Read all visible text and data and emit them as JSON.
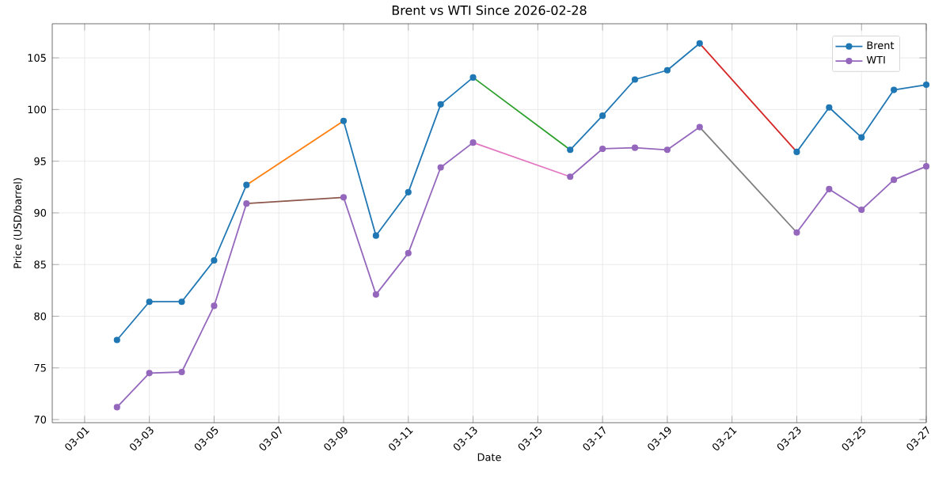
{
  "chart_data": {
    "type": "line",
    "title": "Brent vs WTI Since 2026-02-28",
    "xlabel": "Date",
    "ylabel": "Price (USD/barrel)",
    "x": [
      "2026-03-02",
      "2026-03-03",
      "2026-03-04",
      "2026-03-05",
      "2026-03-06",
      "2026-03-07",
      "2026-03-09",
      "2026-03-10",
      "2026-03-11",
      "2026-03-12",
      "2026-03-13",
      "2026-03-14",
      "2026-03-16",
      "2026-03-17",
      "2026-03-18",
      "2026-03-19",
      "2026-03-20",
      "2026-03-21",
      "2026-03-23",
      "2026-03-24",
      "2026-03-25",
      "2026-03-26",
      "2026-03-27"
    ],
    "series": [
      {
        "name": "Brent",
        "color": "#1f77b4",
        "values": [
          77.7,
          81.4,
          81.4,
          85.4,
          92.7,
          null,
          98.9,
          87.8,
          92.0,
          100.5,
          103.1,
          null,
          96.1,
          99.4,
          102.9,
          103.8,
          106.4,
          null,
          95.9,
          100.2,
          97.3,
          101.9,
          102.4
        ]
      },
      {
        "name": "WTI",
        "color": "#9467bd",
        "values": [
          71.2,
          74.5,
          74.6,
          81.0,
          90.9,
          null,
          91.5,
          82.1,
          86.1,
          94.4,
          96.8,
          null,
          93.5,
          96.2,
          96.3,
          96.1,
          98.3,
          null,
          88.1,
          92.3,
          90.3,
          93.2,
          94.5
        ]
      },
      {
        "color": "#ff7f0e",
        "marker": "none",
        "x": [
          "2026-03-06",
          "2026-03-09"
        ],
        "values": [
          92.7,
          98.9
        ]
      },
      {
        "color": "#2ca02c",
        "marker": "none",
        "x": [
          "2026-03-13",
          "2026-03-16"
        ],
        "values": [
          103.1,
          96.1
        ]
      },
      {
        "color": "#d62728",
        "marker": "none",
        "x": [
          "2026-03-20",
          "2026-03-23"
        ],
        "values": [
          106.4,
          95.9
        ]
      },
      {
        "color": "#8c564b",
        "marker": "none",
        "x": [
          "2026-03-06",
          "2026-03-09"
        ],
        "values": [
          90.9,
          91.5
        ]
      },
      {
        "color": "#e377c2",
        "marker": "none",
        "x": [
          "2026-03-13",
          "2026-03-16"
        ],
        "values": [
          96.8,
          93.5
        ]
      },
      {
        "color": "#7f7f7f",
        "marker": "none",
        "x": [
          "2026-03-20",
          "2026-03-23"
        ],
        "values": [
          98.3,
          88.1
        ]
      }
    ],
    "xlim": [
      "2026-02-28",
      "2026-03-27"
    ],
    "xticks": [
      {
        "value": "2026-03-01",
        "label": "03-01"
      },
      {
        "value": "2026-03-03",
        "label": "03-03"
      },
      {
        "value": "2026-03-05",
        "label": "03-05"
      },
      {
        "value": "2026-03-07",
        "label": "03-07"
      },
      {
        "value": "2026-03-09",
        "label": "03-09"
      },
      {
        "value": "2026-03-11",
        "label": "03-11"
      },
      {
        "value": "2026-03-13",
        "label": "03-13"
      },
      {
        "value": "2026-03-15",
        "label": "03-15"
      },
      {
        "value": "2026-03-17",
        "label": "03-17"
      },
      {
        "value": "2026-03-19",
        "label": "03-19"
      },
      {
        "value": "2026-03-21",
        "label": "03-21"
      },
      {
        "value": "2026-03-23",
        "label": "03-23"
      },
      {
        "value": "2026-03-25",
        "label": "03-25"
      },
      {
        "value": "2026-03-27",
        "label": "03-27"
      }
    ],
    "ylim": [
      69.7,
      108.3
    ],
    "yticks": [
      70,
      75,
      80,
      85,
      90,
      95,
      100,
      105
    ],
    "grid": true,
    "legend": "top right",
    "marker": "circle",
    "line_style": "solid"
  }
}
